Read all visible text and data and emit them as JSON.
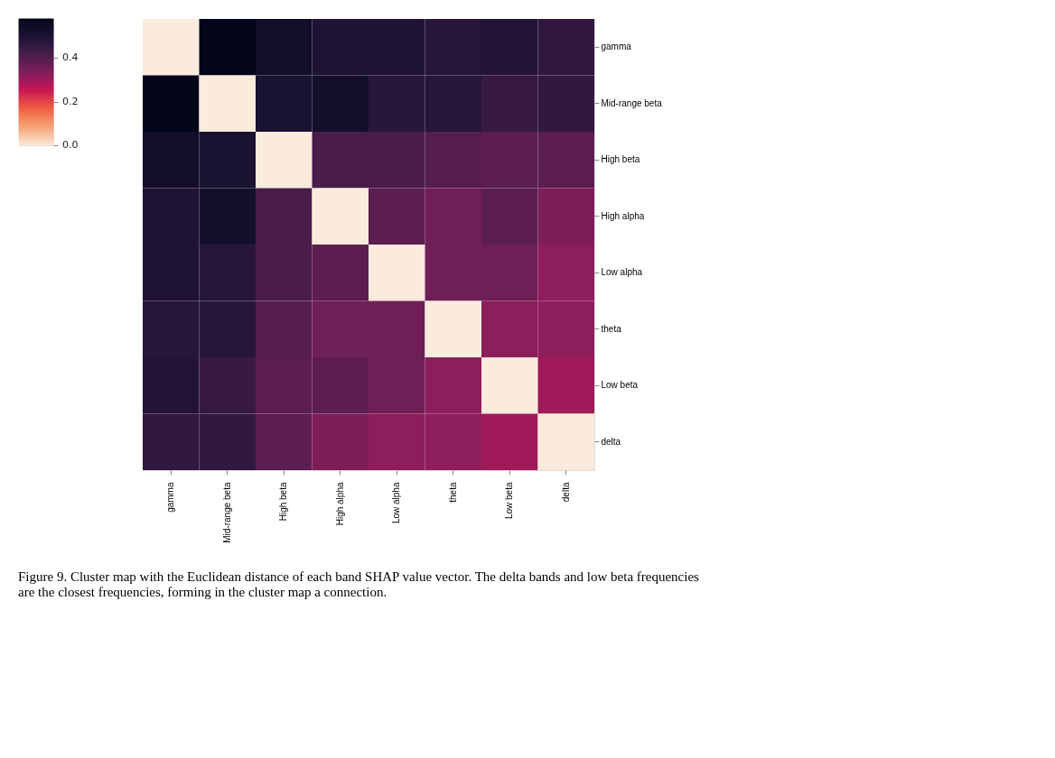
{
  "chart_data": {
    "type": "heatmap",
    "categories": [
      "gamma",
      "Mid-range beta",
      "High beta",
      "High alpha",
      "Low alpha",
      "theta",
      "Low beta",
      "delta"
    ],
    "y_categories": [
      "gamma",
      "Mid-range beta",
      "High beta",
      "High alpha",
      "Low alpha",
      "theta",
      "Low beta",
      "delta"
    ],
    "cells": [
      [
        0,
        0.58,
        0.54,
        0.5,
        0.5,
        0.48,
        0.49,
        0.46
      ],
      [
        0.58,
        0,
        0.51,
        0.53,
        0.48,
        0.48,
        0.45,
        0.46
      ],
      [
        0.54,
        0.51,
        0,
        0.42,
        0.42,
        0.4,
        0.39,
        0.39
      ],
      [
        0.5,
        0.53,
        0.42,
        0,
        0.39,
        0.36,
        0.39,
        0.34
      ],
      [
        0.5,
        0.48,
        0.42,
        0.39,
        0,
        0.36,
        0.36,
        0.32
      ],
      [
        0.48,
        0.48,
        0.4,
        0.36,
        0.36,
        0,
        0.32,
        0.32
      ],
      [
        0.49,
        0.45,
        0.39,
        0.39,
        0.36,
        0.32,
        0,
        0.3
      ],
      [
        0.46,
        0.46,
        0.39,
        0.34,
        0.32,
        0.32,
        0.3,
        0
      ]
    ],
    "clim": [
      0,
      0.58
    ],
    "cticks": [
      {
        "value": 0,
        "label": "0.0"
      },
      0.2,
      0.4
    ],
    "annotations": [
      "Figure 9. Cluster map with the Euclidean distance of each band SHAP value vector. The delta bands and low beta frequencies are the closest frequencies, forming in the cluster map a connection."
    ]
  }
}
